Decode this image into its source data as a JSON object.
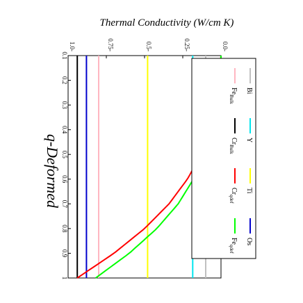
{
  "chart_data": {
    "type": "line",
    "title": "Thermal Conductivity (W/cm K)",
    "annotation": "q-Deformed",
    "x_ticks": [
      "0.1",
      "0.2",
      "0.3",
      "0.4",
      "0.5",
      "0.6",
      "0.7",
      "0.8",
      "0.9",
      "1"
    ],
    "y_ticks": [
      "0.0",
      "0.25",
      "0.5",
      "0.75",
      "1.0"
    ],
    "xlim": [
      0.1,
      1.0
    ],
    "ylim": [
      0.0,
      1.0
    ],
    "orientation": "rotated 90 degrees clockwise",
    "grid": false,
    "legend_position": "top-right",
    "series": [
      {
        "name": "Bi",
        "name_main": "Bi",
        "name_sub": "",
        "color": "#c0c0c0",
        "style": "constant",
        "value": 0.1
      },
      {
        "name": "Y",
        "name_main": "Y",
        "name_sub": "",
        "color": "#00e5ee",
        "style": "constant",
        "value": 0.185
      },
      {
        "name": "Ti",
        "name_main": "Ti",
        "name_sub": "",
        "color": "#ffff00",
        "style": "constant",
        "value": 0.48
      },
      {
        "name": "Os",
        "name_main": "Os",
        "name_sub": "",
        "color": "#0000cd",
        "style": "constant",
        "value": 0.88
      },
      {
        "name": "Fe_Bulk",
        "name_main": "Fe",
        "name_sub": "Bulk",
        "color": "#ffb6c1",
        "style": "constant",
        "value": 0.8
      },
      {
        "name": "Cr_Bulk",
        "name_main": "Cr",
        "name_sub": "Bulk",
        "color": "#000000",
        "style": "constant",
        "value": 0.94
      },
      {
        "name": "Cr_qdef",
        "name_main": "Cr",
        "name_sub": "qdef",
        "color": "#ff0000",
        "style": "curve",
        "x": [
          0.1,
          0.2,
          0.3,
          0.4,
          0.5,
          0.6,
          0.7,
          0.8,
          0.9,
          1.0
        ],
        "values": [
          0.0,
          0.01,
          0.03,
          0.07,
          0.13,
          0.22,
          0.34,
          0.5,
          0.7,
          0.94
        ]
      },
      {
        "name": "Fe_qdef",
        "name_main": "Fe",
        "name_sub": "qdef",
        "color": "#00ff00",
        "style": "curve",
        "x": [
          0.1,
          0.2,
          0.3,
          0.4,
          0.5,
          0.6,
          0.7,
          0.8,
          0.9,
          1.0
        ],
        "values": [
          0.0,
          0.005,
          0.02,
          0.05,
          0.1,
          0.18,
          0.28,
          0.42,
          0.6,
          0.82
        ]
      }
    ],
    "legend_order": [
      "Bi",
      "Y",
      "Ti",
      "Os",
      "Fe_Bulk",
      "Cr_Bulk",
      "Cr_qdef",
      "Fe_qdef"
    ]
  }
}
